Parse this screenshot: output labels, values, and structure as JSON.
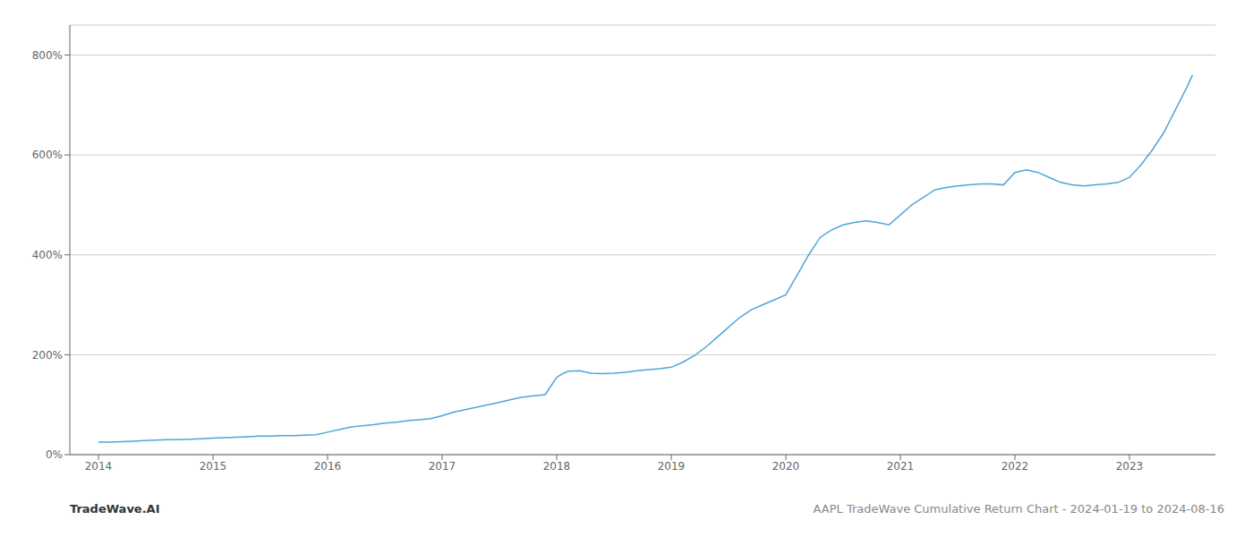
{
  "chart_data": {
    "type": "line",
    "title": "AAPL TradeWave Cumulative Return Chart - 2024-01-19 to 2024-08-16",
    "annotations": [
      "TradeWave.AI"
    ],
    "x": [
      2014.0,
      2014.1,
      2014.2,
      2014.3,
      2014.4,
      2014.5,
      2014.6,
      2014.7,
      2014.8,
      2014.9,
      2015.0,
      2015.1,
      2015.2,
      2015.3,
      2015.4,
      2015.5,
      2015.6,
      2015.7,
      2015.8,
      2015.9,
      2016.0,
      2016.1,
      2016.2,
      2016.3,
      2016.4,
      2016.5,
      2016.6,
      2016.7,
      2016.8,
      2016.9,
      2017.0,
      2017.1,
      2017.2,
      2017.3,
      2017.4,
      2017.5,
      2017.6,
      2017.7,
      2017.8,
      2017.9,
      2018.0,
      2018.05,
      2018.1,
      2018.2,
      2018.3,
      2018.4,
      2018.5,
      2018.6,
      2018.7,
      2018.8,
      2018.9,
      2019.0,
      2019.1,
      2019.2,
      2019.3,
      2019.4,
      2019.5,
      2019.6,
      2019.7,
      2019.8,
      2019.9,
      2020.0,
      2020.1,
      2020.2,
      2020.3,
      2020.4,
      2020.5,
      2020.6,
      2020.7,
      2020.8,
      2020.9,
      2021.0,
      2021.1,
      2021.2,
      2021.3,
      2021.4,
      2021.5,
      2021.6,
      2021.7,
      2021.8,
      2021.9,
      2022.0,
      2022.1,
      2022.2,
      2022.3,
      2022.4,
      2022.5,
      2022.6,
      2022.7,
      2022.8,
      2022.9,
      2023.0,
      2023.1,
      2023.2,
      2023.3,
      2023.4,
      2023.5,
      2023.55
    ],
    "values": [
      25,
      25,
      26,
      27,
      28,
      29,
      30,
      30,
      31,
      32,
      33,
      34,
      35,
      36,
      37,
      37,
      38,
      38,
      39,
      40,
      45,
      50,
      55,
      58,
      60,
      63,
      65,
      68,
      70,
      72,
      78,
      85,
      90,
      95,
      100,
      105,
      110,
      115,
      118,
      120,
      155,
      162,
      167,
      168,
      163,
      162,
      163,
      165,
      168,
      170,
      172,
      175,
      185,
      198,
      215,
      235,
      255,
      275,
      290,
      300,
      310,
      320,
      360,
      400,
      435,
      450,
      460,
      465,
      468,
      465,
      460,
      480,
      500,
      515,
      530,
      535,
      538,
      540,
      542,
      542,
      540,
      565,
      570,
      565,
      555,
      545,
      540,
      538,
      540,
      542,
      545,
      555,
      580,
      610,
      645,
      690,
      735,
      760
    ],
    "color": "#4da6d9",
    "xlim": [
      2013.75,
      2023.75
    ],
    "xticks": [
      2014,
      2015,
      2016,
      2017,
      2018,
      2019,
      2020,
      2021,
      2022,
      2023
    ],
    "ylim": [
      0,
      860
    ],
    "yticks": [
      {
        "value": 0,
        "label": "0%"
      },
      {
        "value": 200,
        "label": "200%"
      },
      {
        "value": 400,
        "label": "400%"
      },
      {
        "value": 600,
        "label": "600%"
      },
      {
        "value": 800,
        "label": "800%"
      }
    ],
    "grid": true
  }
}
